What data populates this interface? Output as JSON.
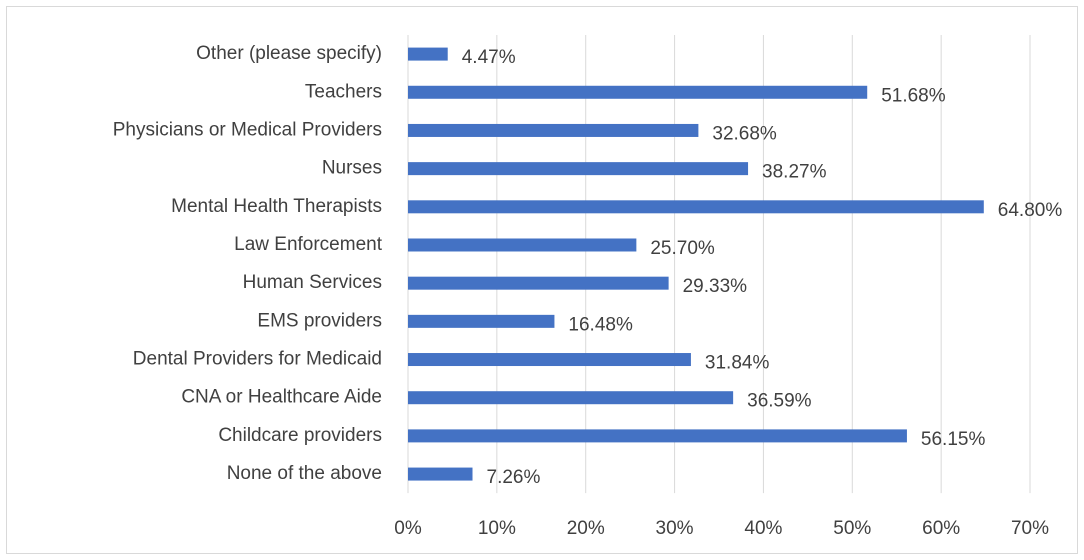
{
  "chart_data": {
    "type": "bar",
    "orientation": "horizontal",
    "categories": [
      "Other (please specify)",
      "Teachers",
      "Physicians or Medical Providers",
      "Nurses",
      "Mental Health Therapists",
      "Law Enforcement",
      "Human Services",
      "EMS providers",
      "Dental Providers for Medicaid",
      "CNA or Healthcare Aide",
      "Childcare providers",
      "None of the above"
    ],
    "values": [
      4.47,
      51.68,
      32.68,
      38.27,
      64.8,
      25.7,
      29.33,
      16.48,
      31.84,
      36.59,
      56.15,
      7.26
    ],
    "value_labels": [
      "4.47%",
      "51.68%",
      "32.68%",
      "38.27%",
      "64.80%",
      "25.70%",
      "29.33%",
      "16.48%",
      "31.84%",
      "36.59%",
      "56.15%",
      "7.26%"
    ],
    "color": "#4472c4",
    "xlim": [
      0,
      70
    ],
    "xticks": [
      {
        "value": 0,
        "label": "0%"
      },
      {
        "value": 10,
        "label": "10%"
      },
      {
        "value": 20,
        "label": "20%"
      },
      {
        "value": 30,
        "label": "30%"
      },
      {
        "value": 40,
        "label": "40%"
      },
      {
        "value": 50,
        "label": "50%"
      },
      {
        "value": 60,
        "label": "60%"
      },
      {
        "value": 70,
        "label": "70%"
      }
    ],
    "grid": true
  }
}
